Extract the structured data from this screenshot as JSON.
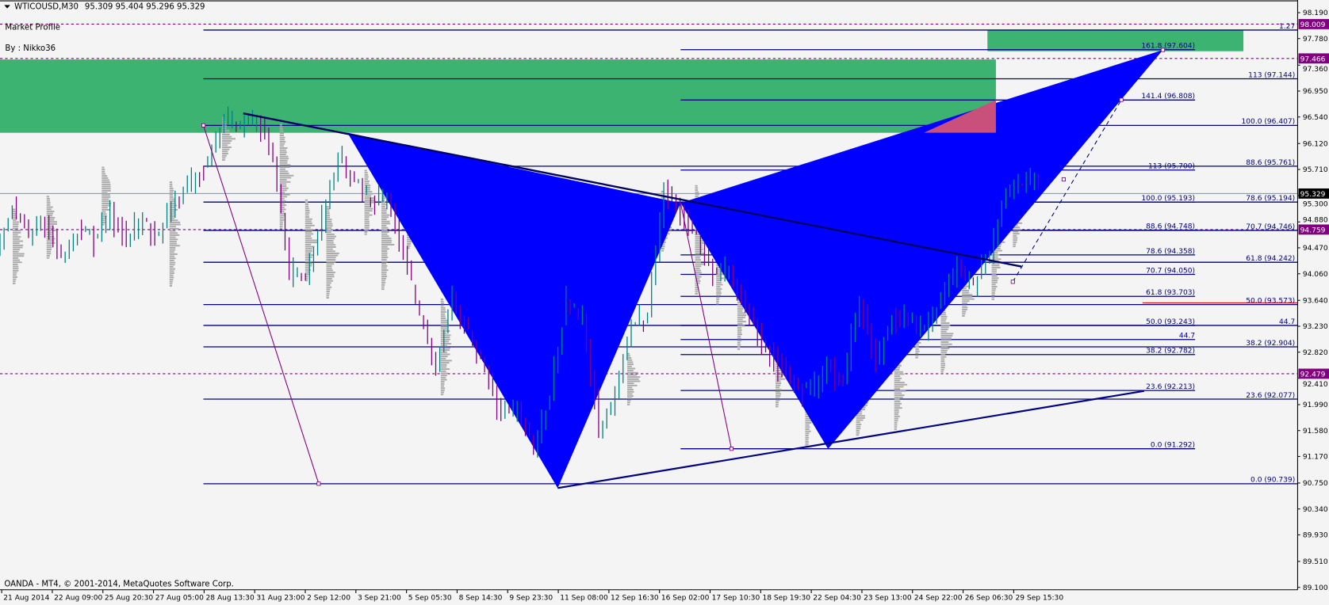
{
  "header": {
    "symbol": "WTICOUSD,M30",
    "ohlc": "95.309 95.404 95.296 95.329"
  },
  "indicator": {
    "name": "Market Profile",
    "author": "By : Nikko36"
  },
  "footer": "OANDA - MT4, © 2001-2014, MetaQuotes Software Corp.",
  "colors": {
    "background": "#f4f4f4",
    "pattern_fill": "#0000ff",
    "zone_fill": "#3cb371",
    "overlap_fill": "#c8507a",
    "fib_line": "#000080",
    "marker_label": "#800080",
    "bull_candle": "#008080",
    "bear_candle": "#800080",
    "profile": "#a9a9a9"
  },
  "chart_data": {
    "type": "candlestick",
    "y_ticks": [
      "98.190",
      "97.780",
      "97.360",
      "96.950",
      "96.540",
      "96.120",
      "95.710",
      "95.300",
      "94.880",
      "94.470",
      "94.060",
      "93.640",
      "93.230",
      "92.820",
      "92.410",
      "91.990",
      "91.580",
      "91.170",
      "90.750",
      "90.340",
      "89.930",
      "89.510",
      "89.100"
    ],
    "ylim": [
      89.1,
      98.19
    ],
    "x_labels": [
      "21 Aug 2014",
      "22 Aug 09:00",
      "25 Aug 20:30",
      "27 Aug 05:00",
      "28 Aug 13:30",
      "31 Aug 23:00",
      "2 Sep 12:00",
      "3 Sep 21:00",
      "5 Sep 05:30",
      "8 Sep 14:30",
      "9 Sep 23:30",
      "11 Sep 08:00",
      "12 Sep 16:30",
      "16 Sep 02:00",
      "17 Sep 10:30",
      "18 Sep 19:30",
      "22 Sep 04:30",
      "23 Sep 13:00",
      "24 Sep 22:00",
      "26 Sep 06:30",
      "29 Sep 15:30"
    ],
    "current_price": {
      "label": "95.329",
      "value": 95.329
    },
    "price_markers": [
      {
        "label": "98.009",
        "value": 98.009
      },
      {
        "label": "97.466",
        "value": 97.466
      },
      {
        "label": "94.759",
        "value": 94.759
      },
      {
        "label": "92.479",
        "value": 92.479
      }
    ],
    "fib_levels_outer": [
      {
        "label": "1.27",
        "value": 97.915
      },
      {
        "label": "113 (97.144)",
        "value": 97.144
      },
      {
        "label": "100.0 (96.407)",
        "value": 96.407
      },
      {
        "label": "88.6 (95.761)",
        "value": 95.761
      },
      {
        "label": "78.6 (95.194)",
        "value": 95.194
      },
      {
        "label": "70.7 (94.746)",
        "value": 94.746
      },
      {
        "label": "61.8 (94.242)",
        "value": 94.242
      },
      {
        "label": "50.0 (93.573)",
        "value": 93.573
      },
      {
        "label": "44.7",
        "value": 93.243
      },
      {
        "label": "38.2 (92.904)",
        "value": 92.904
      },
      {
        "label": "23.6 (92.077)",
        "value": 92.077
      },
      {
        "label": "0.0 (90.739)",
        "value": 90.739
      }
    ],
    "fib_levels_inner": [
      {
        "label": "161.8 (97.604)",
        "value": 97.604
      },
      {
        "label": "141.4 (96.808)",
        "value": 96.808
      },
      {
        "label": "113 (95.700)",
        "value": 95.7
      },
      {
        "label": "100.0 (95.193)",
        "value": 95.193
      },
      {
        "label": "88.6 (94.748)",
        "value": 94.748
      },
      {
        "label": "78.6 (94.358)",
        "value": 94.358
      },
      {
        "label": "70.7 (94.050)",
        "value": 94.05
      },
      {
        "label": "61.8 (93.703)",
        "value": 93.703
      },
      {
        "label": "50.0 (93.243)",
        "value": 93.243
      },
      {
        "label": "44.7",
        "value": 93.02
      },
      {
        "label": "38.2 (92.782)",
        "value": 92.782
      },
      {
        "label": "23.6 (92.213)",
        "value": 92.213
      },
      {
        "label": "0.0 (91.292)",
        "value": 91.292
      }
    ],
    "zones": [
      {
        "from": 96.29,
        "to": 97.45
      },
      {
        "from": 97.58,
        "to": 97.91
      }
    ],
    "harmonic_pattern": {
      "X": 96.29,
      "A": 90.67,
      "B": 95.18,
      "C": 91.29,
      "D": 97.6
    },
    "close": [
      94.38,
      95.14,
      94.63,
      94.89,
      94.26,
      94.76,
      94.63,
      95.01,
      94.63,
      94.89,
      94.63,
      95.26,
      95.45,
      95.89,
      96.51,
      96.39,
      96.51,
      95.89,
      94.01,
      94.07,
      94.89,
      95.89,
      95.51,
      95.14,
      95.26,
      94.38,
      93.38,
      92.63,
      93.63,
      93.13,
      92.51,
      91.88,
      91.88,
      91.25,
      92.13,
      93.63,
      93.38,
      91.63,
      92.13,
      93.26,
      93.38,
      95.39,
      95.01,
      94.63,
      94.13,
      94.01,
      93.51,
      93.01,
      92.63,
      92.38,
      92.13,
      92.63,
      92.38,
      93.63,
      92.63,
      93.38,
      93.38,
      93.13,
      93.76,
      94.13,
      93.88,
      94.38,
      95.39,
      95.51,
      95.51
    ]
  }
}
